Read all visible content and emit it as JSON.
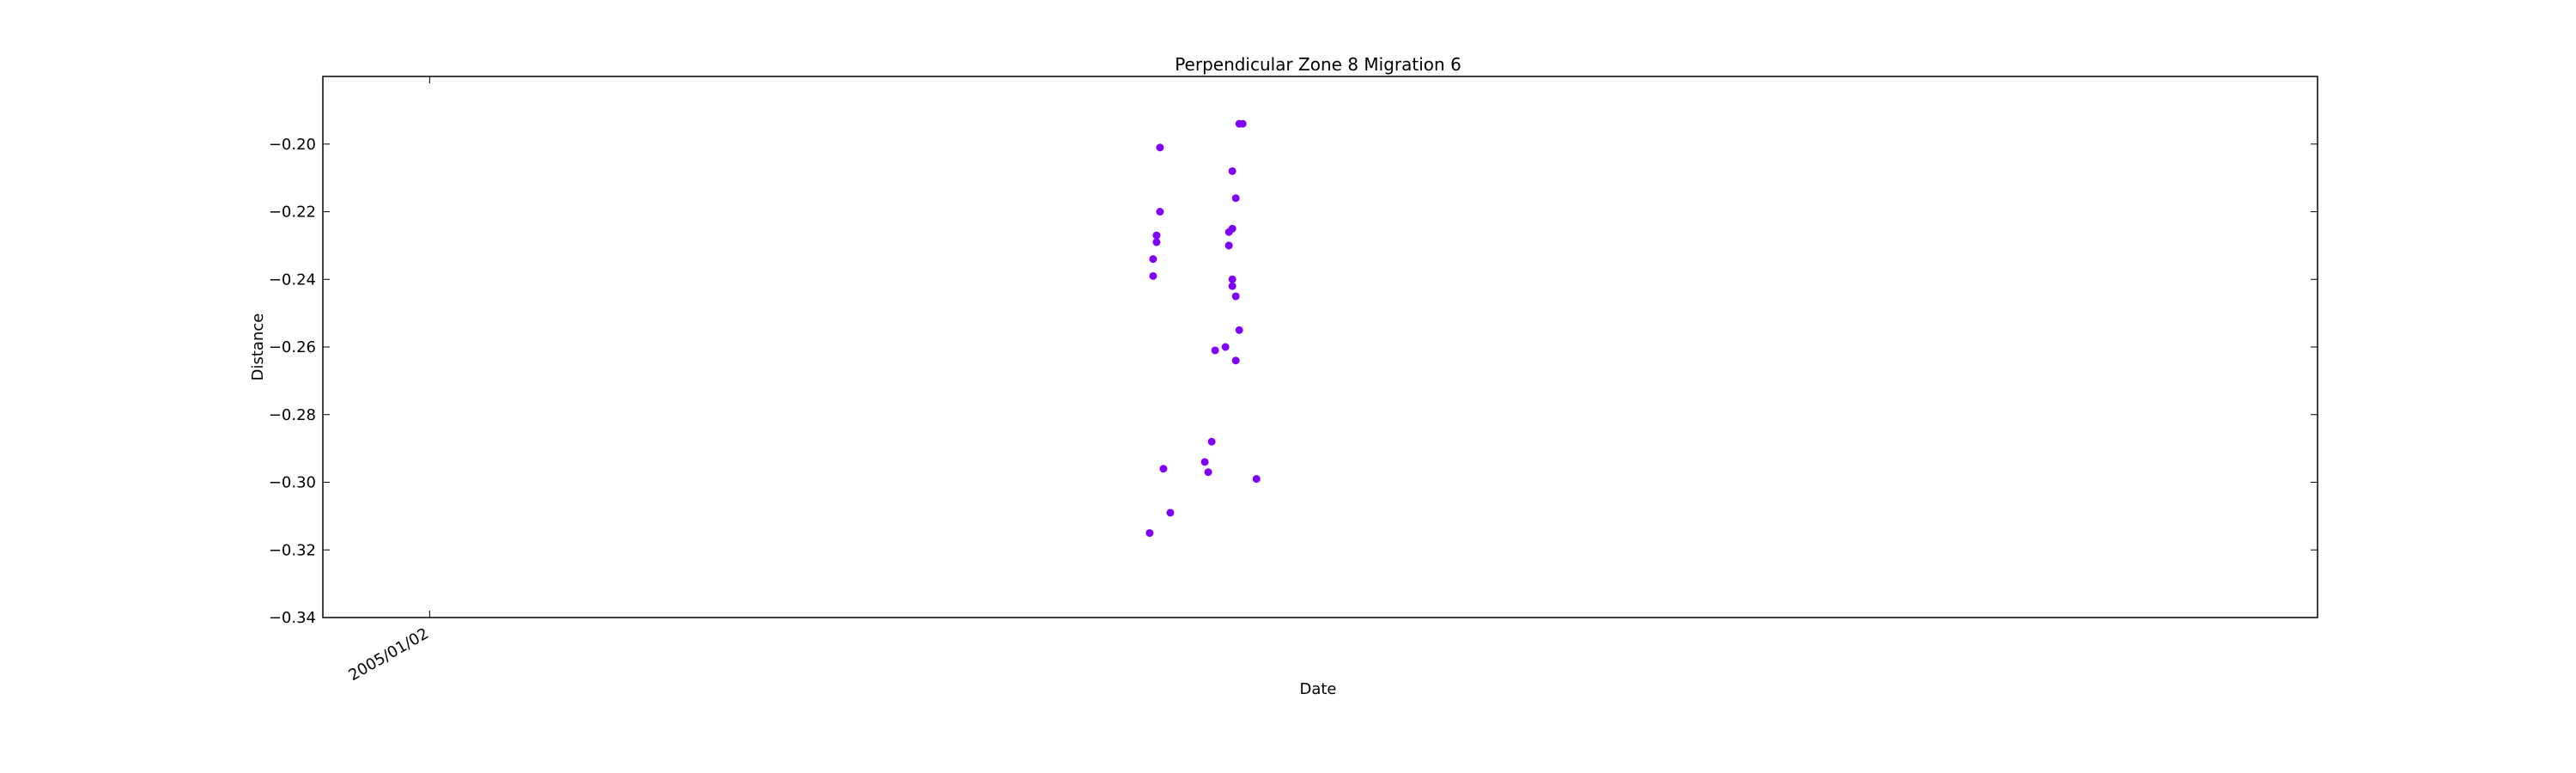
{
  "chart_data": {
    "type": "scatter",
    "title": "Perpendicular Zone 8 Migration 6",
    "xlabel": "Date",
    "ylabel": "Distance",
    "ylim": [
      -0.34,
      -0.18
    ],
    "yticks": [
      -0.34,
      -0.32,
      -0.3,
      -0.28,
      -0.26,
      -0.24,
      -0.22,
      -0.2
    ],
    "ytick_labels": [
      "−0.34",
      "−0.32",
      "−0.30",
      "−0.28",
      "−0.26",
      "−0.24",
      "−0.22",
      "−0.20"
    ],
    "xlim": [
      "2004/12/02",
      "2006/07/04"
    ],
    "xticks": [
      "2005/01/02"
    ],
    "xtick_labels": [
      "2005/01/02"
    ],
    "grid": false,
    "marker_color": "#8000ff",
    "series": [
      {
        "x": [
          "2005/07/30",
          "2005/07/31",
          "2005/07/31",
          "2005/08/01",
          "2005/08/01",
          "2005/08/02",
          "2005/08/02",
          "2005/08/03",
          "2005/08/05",
          "2005/08/15",
          "2005/08/16",
          "2005/08/17",
          "2005/08/18",
          "2005/08/21",
          "2005/08/22",
          "2005/08/22",
          "2005/08/22",
          "2005/08/23",
          "2005/08/23",
          "2005/08/23",
          "2005/08/23",
          "2005/08/24",
          "2005/08/24",
          "2005/08/24",
          "2005/08/25",
          "2005/08/25",
          "2005/08/26",
          "2005/08/30"
        ],
        "y": [
          -0.315,
          -0.234,
          -0.239,
          -0.229,
          -0.227,
          -0.201,
          -0.22,
          -0.296,
          -0.309,
          -0.294,
          -0.297,
          -0.288,
          -0.261,
          -0.26,
          -0.226,
          -0.23,
          -0.23,
          -0.225,
          -0.24,
          -0.242,
          -0.208,
          -0.216,
          -0.264,
          -0.245,
          -0.255,
          -0.194,
          -0.194,
          -0.299
        ]
      }
    ]
  }
}
